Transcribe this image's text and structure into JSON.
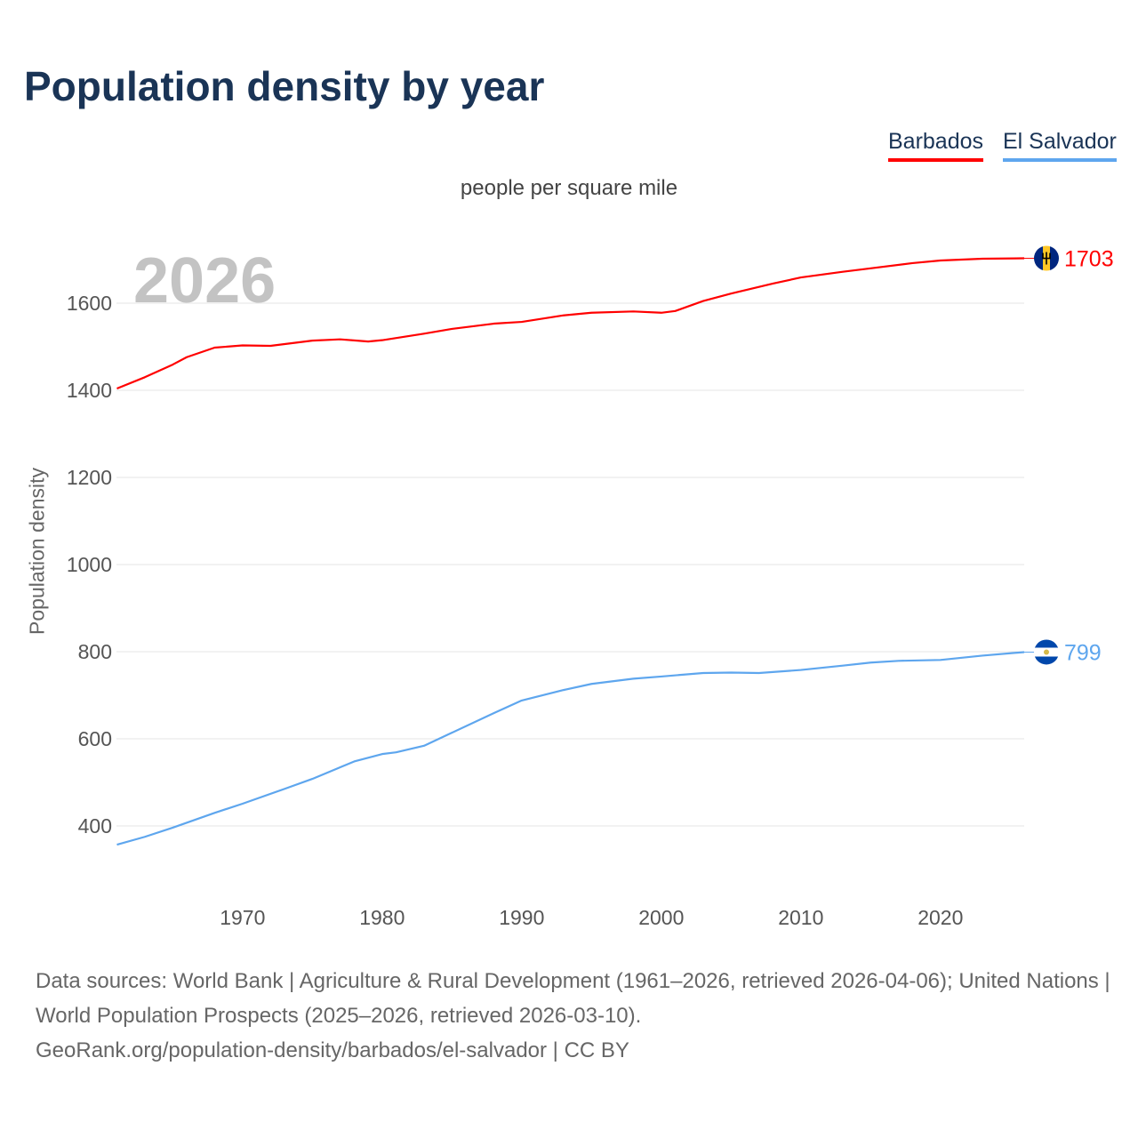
{
  "title": "Population density by year",
  "legend": [
    "Barbados",
    "El Salvador"
  ],
  "current_year": "2026",
  "source_lines": [
    "Data sources: World Bank | Agriculture & Rural Development (1961–2026, retrieved 2026-04-06); United Nations | World Population Prospects (2025–2026, retrieved 2026-03-10).",
    "GeoRank.org/population-density/barbados/el-salvador | CC BY"
  ],
  "chart_data": {
    "type": "line",
    "title": "Population density by year",
    "subtitle": "people per square mile",
    "xlabel": "",
    "ylabel": "Population density",
    "xlim": [
      1961,
      2026
    ],
    "ylim": [
      300,
      1800
    ],
    "xticks": [
      1970,
      1980,
      1990,
      2000,
      2010,
      2020
    ],
    "yticks": [
      400,
      600,
      800,
      1000,
      1200,
      1400,
      1600
    ],
    "grid": true,
    "legend_position": "top-right",
    "series": [
      {
        "name": "Barbados",
        "color": "#ff0000",
        "end_label": "1703",
        "x": [
          1961,
          1963,
          1965,
          1966,
          1968,
          1970,
          1972,
          1975,
          1977,
          1979,
          1980,
          1983,
          1985,
          1988,
          1990,
          1993,
          1995,
          1998,
          2000,
          2001,
          2003,
          2005,
          2008,
          2010,
          2013,
          2015,
          2018,
          2020,
          2023,
          2026
        ],
        "y": [
          1404,
          1430,
          1459,
          1476,
          1498,
          1503,
          1502,
          1514,
          1517,
          1512,
          1515,
          1530,
          1541,
          1553,
          1557,
          1572,
          1578,
          1581,
          1578,
          1582,
          1605,
          1622,
          1645,
          1659,
          1672,
          1680,
          1692,
          1698,
          1702,
          1703
        ]
      },
      {
        "name": "El Salvador",
        "color": "#5ea6ee",
        "end_label": "799",
        "x": [
          1961,
          1963,
          1965,
          1968,
          1970,
          1973,
          1975,
          1978,
          1980,
          1981,
          1983,
          1985,
          1988,
          1990,
          1993,
          1995,
          1998,
          2000,
          2003,
          2005,
          2007,
          2010,
          2013,
          2015,
          2017,
          2020,
          2023,
          2026
        ],
        "y": [
          357,
          375,
          396,
          430,
          451,
          485,
          508,
          548,
          565,
          569,
          584,
          614,
          659,
          688,
          712,
          726,
          738,
          743,
          751,
          752,
          751,
          758,
          768,
          775,
          779,
          781,
          791,
          799
        ]
      }
    ]
  }
}
